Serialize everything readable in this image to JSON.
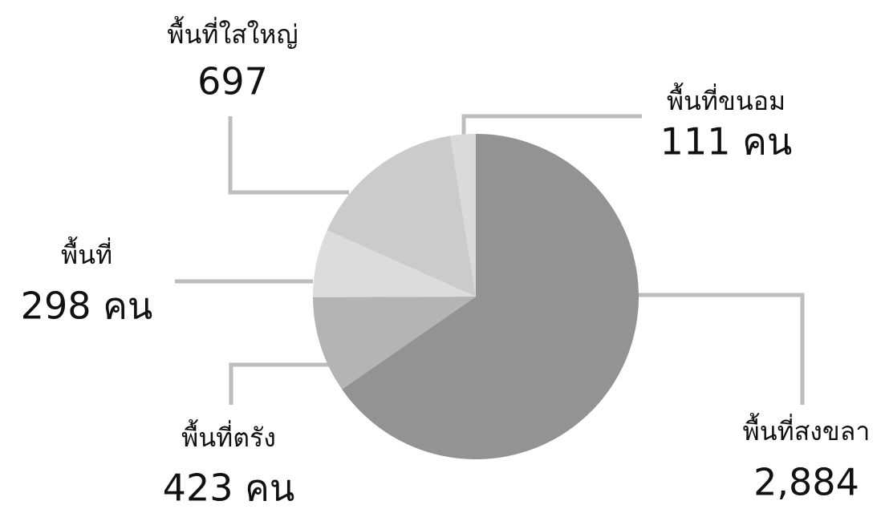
{
  "chart_data": {
    "type": "pie",
    "categories": [
      "พื้นที่สงขลา",
      "พื้นที่ตรัง",
      "พื้นที่",
      "พื้นที่ใสใหญ่",
      "พื้นที่ขนอม"
    ],
    "values": [
      2884,
      423,
      298,
      697,
      111
    ],
    "value_labels": [
      "2,884",
      "423 คน",
      "298 คน",
      "697",
      "111 คน"
    ],
    "colors": [
      "#939394",
      "#b4b4b5",
      "#dcdcdd",
      "#cbcbcc",
      "#dadadb"
    ]
  }
}
